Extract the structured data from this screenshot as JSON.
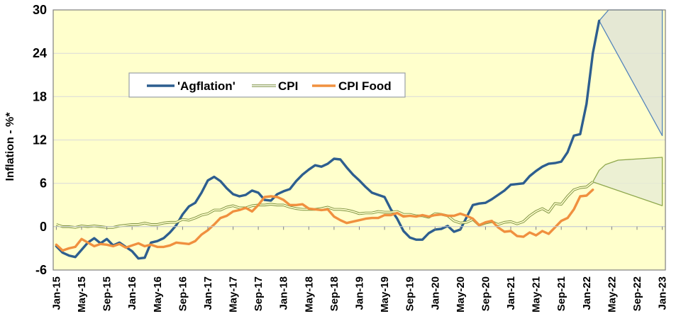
{
  "chart": {
    "ylabel": "Inflation - %*",
    "legend_labels": [
      "'Agflation'",
      "CPI",
      "CPI Food"
    ]
  },
  "chart_data": {
    "type": "line",
    "title": "",
    "ylabel": "Inflation - %*",
    "xlabel": "",
    "ylim": [
      -6,
      30
    ],
    "yticks": [
      -6,
      0,
      6,
      12,
      18,
      24,
      30
    ],
    "x_unit": "month",
    "x_start": "Jan-15",
    "x_end": "Jan-23",
    "x_months_total": 97,
    "x_tick_every": 4,
    "x_tick_labels": [
      "Jan-15",
      "May-15",
      "Sep-15",
      "Jan-16",
      "May-16",
      "Sep-16",
      "Jan-17",
      "May-17",
      "Sep-17",
      "Jan-18",
      "May-18",
      "Sep-18",
      "Jan-19",
      "May-19",
      "Sep-19",
      "Jan-20",
      "May-20",
      "Sep-20",
      "Jan-21",
      "May-21",
      "Sep-21",
      "Jan-22",
      "May-22",
      "Sep-22",
      "Jan-23"
    ],
    "grid_on": true,
    "legend_position": "top-center-inside",
    "plot_bg": "#ffffcc",
    "grid_color": "#d9d9d9",
    "border_color": "#7f7f7f",
    "tick_color": "#808080",
    "series": [
      {
        "name": "'Agflation'",
        "color": "#2d5e8f",
        "style": "solid-thick",
        "start": "Jan-15",
        "end": "Mar-22",
        "values": [
          -2.7,
          -3.6,
          -4.0,
          -4.2,
          -3.2,
          -2.2,
          -1.6,
          -2.3,
          -1.7,
          -2.6,
          -2.2,
          -2.8,
          -3.4,
          -4.4,
          -4.3,
          -2.2,
          -2.0,
          -1.6,
          -0.8,
          0.2,
          1.7,
          2.8,
          3.3,
          4.7,
          6.4,
          6.9,
          6.3,
          5.3,
          4.5,
          4.2,
          4.4,
          5.0,
          4.7,
          3.7,
          3.6,
          4.5,
          4.9,
          5.2,
          6.3,
          7.2,
          7.9,
          8.5,
          8.3,
          8.7,
          9.4,
          9.3,
          8.2,
          7.2,
          6.4,
          5.5,
          4.7,
          4.4,
          4.1,
          2.4,
          1.1,
          -0.6,
          -1.5,
          -1.8,
          -1.8,
          -0.9,
          -0.4,
          -0.3,
          0.1,
          -0.7,
          -0.4,
          1.3,
          3.0,
          3.2,
          3.3,
          3.8,
          4.4,
          5.0,
          5.8,
          5.9,
          6.0,
          7.0,
          7.7,
          8.3,
          8.7,
          8.8,
          9.0,
          10.3,
          12.6,
          12.8,
          17.0,
          24.0,
          28.5
        ]
      },
      {
        "name": "CPI",
        "color": "#7d9140",
        "style": "double-line",
        "start": "Jan-15",
        "end": "Feb-22",
        "values": [
          0.3,
          0.0,
          0.0,
          -0.1,
          0.1,
          0.0,
          0.1,
          0.0,
          -0.1,
          -0.1,
          0.1,
          0.2,
          0.3,
          0.3,
          0.5,
          0.3,
          0.3,
          0.5,
          0.6,
          0.6,
          1.0,
          0.9,
          1.2,
          1.6,
          1.8,
          2.3,
          2.3,
          2.7,
          2.9,
          2.6,
          2.6,
          2.9,
          3.0,
          3.0,
          3.1,
          3.0,
          3.0,
          2.7,
          2.5,
          2.4,
          2.4,
          2.4,
          2.5,
          2.7,
          2.4,
          2.4,
          2.3,
          2.1,
          1.8,
          1.9,
          1.9,
          2.1,
          2.0,
          2.0,
          2.1,
          1.7,
          1.7,
          1.5,
          1.5,
          1.3,
          1.8,
          1.7,
          1.5,
          0.8,
          0.5,
          0.6,
          1.0,
          0.2,
          0.5,
          0.7,
          0.3,
          0.6,
          0.7,
          0.4,
          0.7,
          1.5,
          2.1,
          2.5,
          2.0,
          3.2,
          3.1,
          4.2,
          5.1,
          5.4,
          5.5,
          6.2
        ]
      },
      {
        "name": "CPI Food",
        "color": "#f0903f",
        "style": "solid-thick",
        "start": "Jan-15",
        "end": "Feb-22",
        "values": [
          -2.5,
          -3.3,
          -3.0,
          -2.8,
          -1.7,
          -2.2,
          -2.7,
          -2.4,
          -2.5,
          -2.7,
          -2.4,
          -2.9,
          -2.6,
          -2.3,
          -2.7,
          -2.5,
          -2.8,
          -2.8,
          -2.6,
          -2.2,
          -2.3,
          -2.4,
          -2.0,
          -1.1,
          -0.5,
          0.3,
          1.2,
          1.5,
          2.1,
          2.3,
          2.6,
          2.1,
          3.0,
          4.1,
          4.2,
          4.1,
          3.7,
          3.0,
          3.0,
          3.1,
          2.5,
          2.4,
          2.3,
          2.4,
          1.4,
          0.9,
          0.5,
          0.7,
          0.9,
          1.1,
          1.2,
          1.2,
          1.6,
          1.6,
          1.9,
          1.4,
          1.5,
          1.4,
          1.6,
          1.4,
          1.6,
          1.7,
          1.5,
          1.5,
          1.8,
          1.5,
          1.1,
          0.2,
          0.6,
          0.8,
          -0.1,
          -0.7,
          -0.6,
          -1.3,
          -1.4,
          -0.8,
          -1.2,
          -0.6,
          -1.0,
          -0.1,
          0.8,
          1.2,
          2.4,
          4.2,
          4.3,
          5.1
        ]
      }
    ],
    "projections": [
      {
        "name": "'Agflation' projection range",
        "color": "#5585bb",
        "fill": "#dfe3d6",
        "from": "Mar-22",
        "to": "Jan-23",
        "upper": [
          [
            86,
            28.5
          ],
          [
            87.5,
            30
          ],
          [
            96,
            30
          ]
        ],
        "lower": [
          [
            86,
            28.5
          ],
          [
            96,
            12.6
          ]
        ]
      },
      {
        "name": "CPI projection range",
        "color": "#8fa84e",
        "fill": "#e8edd4",
        "from": "Feb-22",
        "to": "Jan-23",
        "upper": [
          [
            85,
            6.2
          ],
          [
            86,
            7.8
          ],
          [
            87,
            8.6
          ],
          [
            89,
            9.2
          ],
          [
            96,
            9.6
          ]
        ],
        "lower": [
          [
            85,
            6.2
          ],
          [
            96,
            2.9
          ]
        ]
      }
    ]
  }
}
